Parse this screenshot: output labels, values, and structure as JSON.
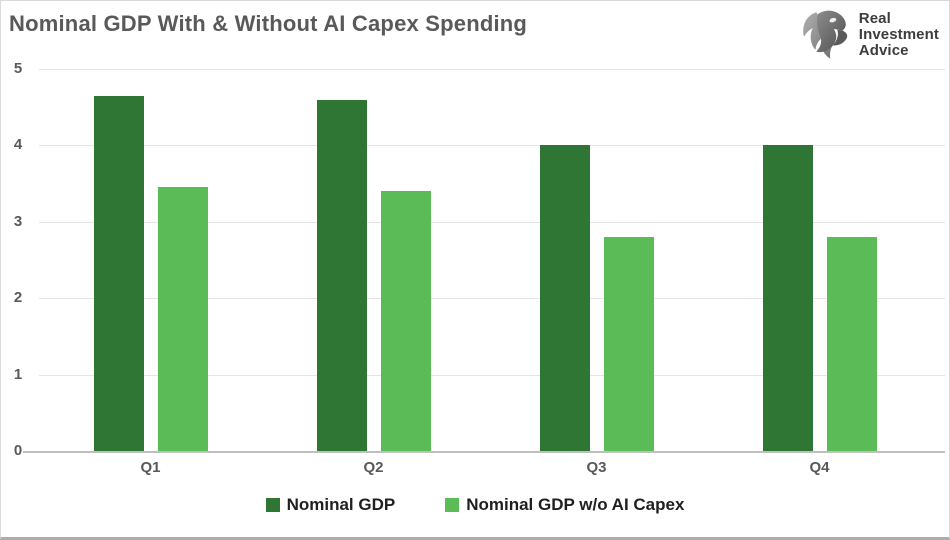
{
  "logo": {
    "lines": [
      "Real",
      "Investment",
      "Advice"
    ]
  },
  "chart_data": {
    "type": "bar",
    "title": "Nominal GDP With & Without AI Capex Spending",
    "categories": [
      "Q1",
      "Q2",
      "Q3",
      "Q4"
    ],
    "series": [
      {
        "name": "Nominal GDP",
        "color": "#2f7635",
        "values": [
          4.65,
          4.6,
          4.0,
          4.0
        ]
      },
      {
        "name": "Nominal GDP w/o AI Capex",
        "color": "#5bbb56",
        "values": [
          3.45,
          3.4,
          2.8,
          2.8
        ]
      }
    ],
    "xlabel": "",
    "ylabel": "",
    "ylim": [
      0,
      5
    ],
    "yticks": [
      0,
      1,
      2,
      3,
      4,
      5
    ],
    "grid": "horizontal",
    "legend_position": "bottom"
  },
  "colors": {
    "title_text": "#595959",
    "axis_text": "#595959",
    "legend_text": "#1f1f1f",
    "gridline": "#e4e4e4",
    "baseline": "#bfbfbf",
    "background": "#ffffff"
  }
}
